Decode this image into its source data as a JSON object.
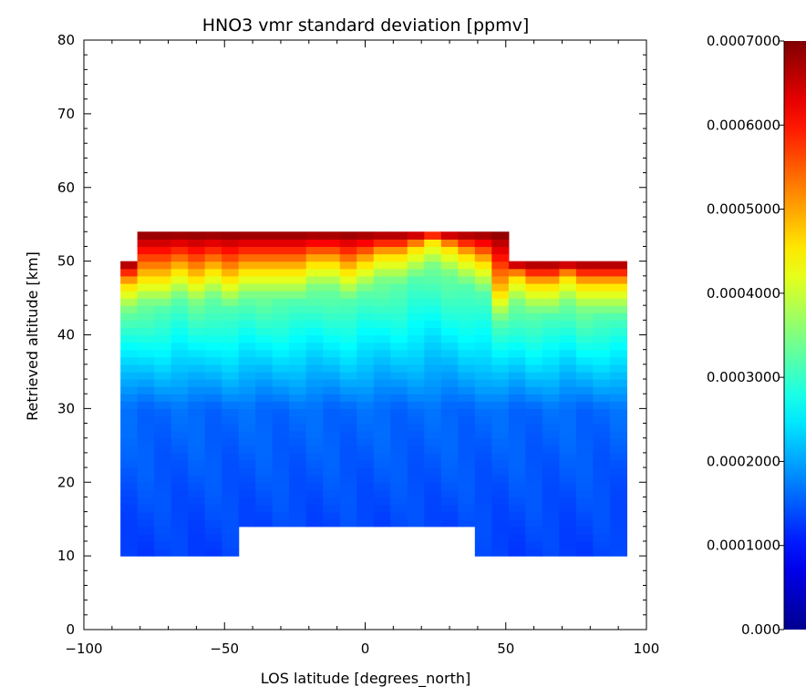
{
  "chart_data": {
    "type": "heatmap",
    "title": "HNO3 vmr standard deviation [ppmv]",
    "xlabel": "LOS latitude [degrees_north]",
    "ylabel": "Retrieved altitude [km]",
    "xlim": [
      -100,
      100
    ],
    "ylim": [
      0,
      80
    ],
    "x_ticks": [
      "−100",
      "−50",
      "0",
      "50",
      "100"
    ],
    "y_ticks": [
      "0",
      "10",
      "20",
      "30",
      "40",
      "50",
      "60",
      "70",
      "80"
    ],
    "colorbar": {
      "range": [
        0.0,
        0.0007
      ],
      "tick_labels": [
        "0.000",
        "0.0001000",
        "0.0002000",
        "0.0003000",
        "0.0004000",
        "0.0005000",
        "0.0006000",
        "0.0007000"
      ],
      "colormap": [
        "#00008f",
        "#0000ff",
        "#0080ff",
        "#00ffff",
        "#80ff80",
        "#ffff00",
        "#ff8000",
        "#ff0000",
        "#800000"
      ]
    },
    "latitudes": [
      -84,
      -78,
      -72,
      -66,
      -60,
      -54,
      -48,
      -42,
      -36,
      -30,
      -24,
      -18,
      -12,
      -6,
      0,
      6,
      12,
      18,
      24,
      30,
      36,
      42,
      48,
      54,
      60,
      66,
      72,
      78,
      84,
      90
    ],
    "profile_bottom_km": [
      10,
      10,
      10,
      10,
      10,
      10,
      10,
      14,
      14,
      14,
      14,
      14,
      14,
      14,
      14,
      14,
      14,
      14,
      14,
      14,
      14,
      10,
      10,
      10,
      10,
      10,
      10,
      10,
      10,
      10
    ],
    "profile_top_km": [
      50,
      54,
      54,
      54,
      54,
      54,
      54,
      54,
      54,
      54,
      54,
      54,
      54,
      54,
      54,
      54,
      54,
      54,
      54,
      54,
      54,
      54,
      54,
      50,
      50,
      50,
      50,
      50,
      50,
      50
    ],
    "transition_altitude_km": [
      47,
      48,
      48,
      49,
      48,
      49,
      48,
      49,
      49,
      49,
      49,
      50,
      50,
      49,
      50,
      51,
      51,
      52,
      53,
      52,
      51,
      50,
      46,
      48,
      47,
      47,
      48,
      47,
      47,
      47
    ],
    "base_value": 0.00013
  }
}
